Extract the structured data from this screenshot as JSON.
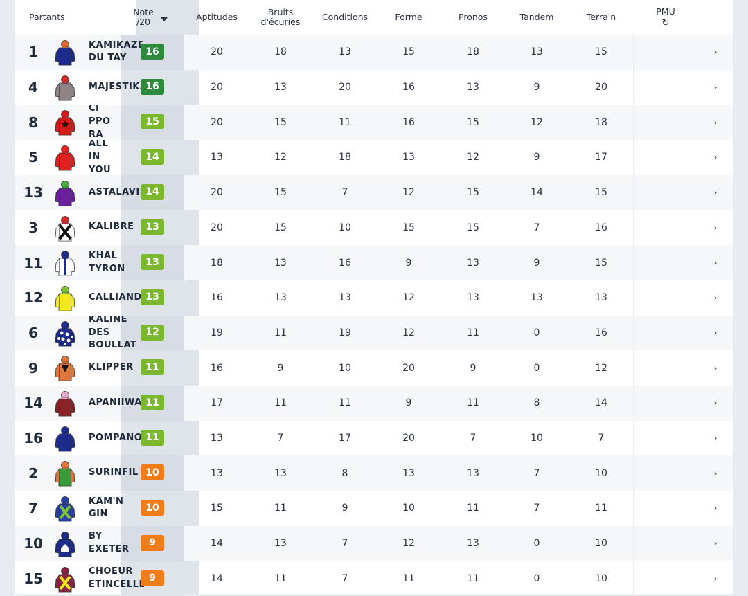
{
  "header": {
    "partants": "Partants",
    "note_line1": "Note",
    "note_line2": "/20",
    "aptitudes": "Aptitudes",
    "bruits_line1": "Bruits",
    "bruits_line2": "d'écuries",
    "conditions": "Conditions",
    "forme": "Forme",
    "pronos": "Pronos",
    "tandem": "Tandem",
    "terrain": "Terrain",
    "pmu": "PMU",
    "refresh_icon": "↻"
  },
  "colors": {
    "dark_green": "#2e8b3e",
    "green": "#7cb82f",
    "orange": "#f07d1a"
  },
  "rows": [
    {
      "num": "1",
      "name": "KAMIKAZE\nDU TAY",
      "note": "16",
      "note_color": "dark_green",
      "scores": [
        "20",
        "18",
        "13",
        "15",
        "18",
        "13",
        "15"
      ],
      "jockey": {
        "body": "#1d2b8c",
        "sleeve": "#1d2b8c",
        "cap": "#e06a2a",
        "pattern": "plain"
      }
    },
    {
      "num": "4",
      "name": "MAJESTIKA",
      "note": "16",
      "note_color": "dark_green",
      "scores": [
        "20",
        "13",
        "20",
        "16",
        "13",
        "9",
        "20"
      ],
      "jockey": {
        "body": "#8e8486",
        "sleeve": "#8e8486",
        "cap": "#d22a2a",
        "pattern": "plain"
      }
    },
    {
      "num": "8",
      "name": "CI\nPPO\nRA",
      "note": "15",
      "note_color": "green",
      "scores": [
        "20",
        "15",
        "11",
        "16",
        "15",
        "12",
        "18"
      ],
      "jockey": {
        "body": "#d61a1a",
        "sleeve": "#d61a1a",
        "cap": "#d61a1a",
        "pattern": "star"
      }
    },
    {
      "num": "5",
      "name": "ALL\nIN\nYOU",
      "note": "14",
      "note_color": "green",
      "scores": [
        "13",
        "12",
        "18",
        "13",
        "12",
        "9",
        "17"
      ],
      "jockey": {
        "body": "#e22020",
        "sleeve": "#e22020",
        "cap": "#e22020",
        "pattern": "plain"
      }
    },
    {
      "num": "13",
      "name": "ASTALAVISTA",
      "note": "14",
      "note_color": "green",
      "scores": [
        "20",
        "15",
        "7",
        "12",
        "15",
        "14",
        "15"
      ],
      "jockey": {
        "body": "#6a1f9e",
        "sleeve": "#6a1f9e",
        "cap": "#49b040",
        "pattern": "plain"
      }
    },
    {
      "num": "3",
      "name": "KALIBRE",
      "note": "13",
      "note_color": "green",
      "scores": [
        "20",
        "15",
        "10",
        "15",
        "15",
        "7",
        "16"
      ],
      "jockey": {
        "body": "#ffffff",
        "sleeve": "#ffffff",
        "cap": "#d22a2a",
        "pattern": "cross"
      }
    },
    {
      "num": "11",
      "name": "KHAL\nTYRON",
      "note": "13",
      "note_color": "green",
      "scores": [
        "18",
        "13",
        "16",
        "9",
        "13",
        "9",
        "15"
      ],
      "jockey": {
        "body": "#ffffff",
        "sleeve": "#ffffff",
        "cap": "#1d2b8c",
        "pattern": "stripe"
      }
    },
    {
      "num": "12",
      "name": "CALLIANDRA",
      "note": "13",
      "note_color": "green",
      "scores": [
        "16",
        "13",
        "13",
        "12",
        "13",
        "13",
        "13"
      ],
      "jockey": {
        "body": "#f3e81a",
        "sleeve": "#f3e81a",
        "cap": "#7cc43a",
        "pattern": "plain"
      }
    },
    {
      "num": "6",
      "name": "KALINE\nDES\nBOULLAT",
      "note": "12",
      "note_color": "green",
      "scores": [
        "19",
        "11",
        "19",
        "12",
        "11",
        "0",
        "16"
      ],
      "jockey": {
        "body": "#1d2b8c",
        "sleeve": "#1d2b8c",
        "cap": "#1d2b8c",
        "pattern": "dots"
      }
    },
    {
      "num": "9",
      "name": "KLIPPER",
      "note": "11",
      "note_color": "green",
      "scores": [
        "16",
        "9",
        "10",
        "20",
        "9",
        "0",
        "12"
      ],
      "jockey": {
        "body": "#e0763a",
        "sleeve": "#e0763a",
        "cap": "#e0763a",
        "pattern": "triangle"
      }
    },
    {
      "num": "14",
      "name": "APANIIWA",
      "note": "11",
      "note_color": "green",
      "scores": [
        "17",
        "11",
        "11",
        "9",
        "11",
        "8",
        "14"
      ],
      "jockey": {
        "body": "#8a2228",
        "sleeve": "#8a2228",
        "cap": "#e8a8cc",
        "pattern": "plain"
      }
    },
    {
      "num": "16",
      "name": "POMPANO",
      "note": "11",
      "note_color": "green",
      "scores": [
        "13",
        "7",
        "17",
        "20",
        "7",
        "10",
        "7"
      ],
      "jockey": {
        "body": "#1d2b8c",
        "sleeve": "#1d2b8c",
        "cap": "#1d2b8c",
        "pattern": "plain"
      }
    },
    {
      "num": "2",
      "name": "SURINFIL",
      "note": "10",
      "note_color": "orange",
      "scores": [
        "13",
        "13",
        "8",
        "13",
        "13",
        "7",
        "10"
      ],
      "jockey": {
        "body": "#3a9a3a",
        "sleeve": "#e0763a",
        "cap": "#e0763a",
        "pattern": "plain"
      }
    },
    {
      "num": "7",
      "name": "KAM'N\nGIN",
      "note": "10",
      "note_color": "orange",
      "scores": [
        "15",
        "11",
        "9",
        "10",
        "11",
        "7",
        "11"
      ],
      "jockey": {
        "body": "#2a3ea8",
        "sleeve": "#2a3ea8",
        "cap": "#2a3ea8",
        "pattern": "greencross"
      }
    },
    {
      "num": "10",
      "name": "BY\nEXETER",
      "note": "9",
      "note_color": "orange",
      "scores": [
        "14",
        "13",
        "7",
        "12",
        "13",
        "0",
        "10"
      ],
      "jockey": {
        "body": "#1d2b8c",
        "sleeve": "#1d2b8c",
        "cap": "#1d2b8c",
        "pattern": "house"
      }
    },
    {
      "num": "15",
      "name": "CHOEUR\nETINCELLE",
      "note": "9",
      "note_color": "orange",
      "scores": [
        "14",
        "11",
        "7",
        "11",
        "11",
        "0",
        "10"
      ],
      "jockey": {
        "body": "#8a2244",
        "sleeve": "#8a2244",
        "cap": "#8a2244",
        "pattern": "yellowcross"
      }
    }
  ],
  "row_chevron": "›"
}
